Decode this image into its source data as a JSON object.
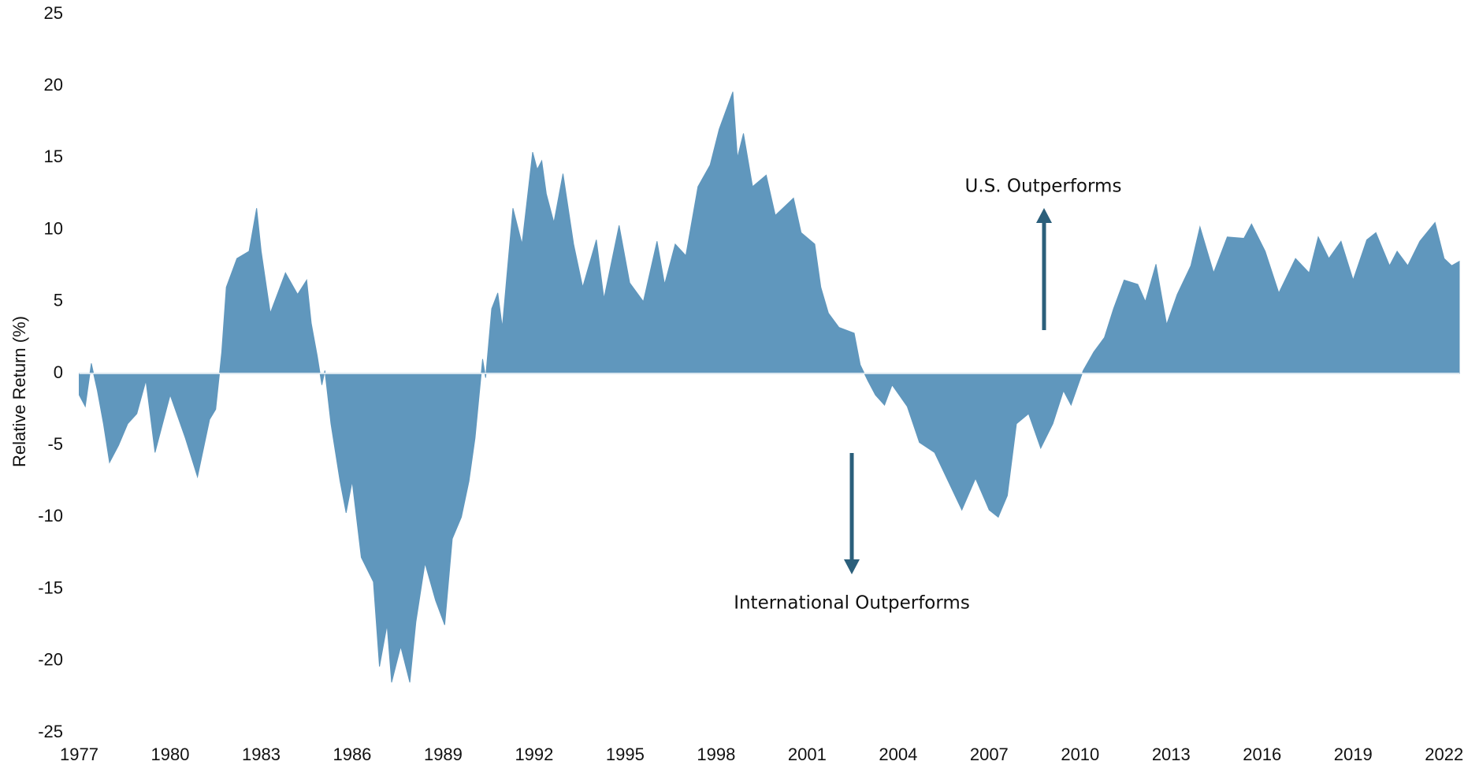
{
  "chart_data": {
    "type": "area",
    "y_label": "Relative Return (%)",
    "annotations": [
      "U.S. Outperforms",
      "International Outperforms"
    ],
    "color": "#6097bd",
    "x": [
      1977.0,
      1977.2,
      1977.4,
      1977.6,
      1977.8,
      1978.0,
      1978.3,
      1978.6,
      1978.9,
      1979.2,
      1979.5,
      1980.0,
      1980.5,
      1980.9,
      1981.3,
      1981.5,
      1981.7,
      1981.85,
      1982.2,
      1982.6,
      1982.85,
      1983.0,
      1983.3,
      1983.8,
      1984.2,
      1984.5,
      1984.65,
      1984.85,
      1985.0,
      1985.1,
      1985.3,
      1985.6,
      1985.8,
      1986.0,
      1986.3,
      1986.7,
      1986.9,
      1987.15,
      1987.3,
      1987.6,
      1987.9,
      1988.1,
      1988.4,
      1988.75,
      1989.05,
      1989.3,
      1989.6,
      1989.85,
      1990.05,
      1990.3,
      1990.4,
      1990.6,
      1990.8,
      1990.95,
      1991.1,
      1991.3,
      1991.6,
      1991.95,
      1992.1,
      1992.25,
      1992.4,
      1992.65,
      1992.95,
      1993.3,
      1993.6,
      1994.05,
      1994.3,
      1994.8,
      1995.15,
      1995.6,
      1996.05,
      1996.3,
      1996.65,
      1997.0,
      1997.4,
      1997.8,
      1998.1,
      1998.55,
      1998.7,
      1998.9,
      1999.2,
      1999.65,
      1999.95,
      2000.55,
      2000.8,
      2001.25,
      2001.45,
      2001.7,
      2002.05,
      2002.55,
      2002.75,
      2003.0,
      2003.25,
      2003.55,
      2003.8,
      2004.3,
      2004.7,
      2005.2,
      2005.65,
      2006.1,
      2006.55,
      2007.0,
      2007.3,
      2007.6,
      2007.9,
      2008.3,
      2008.7,
      2009.1,
      2009.45,
      2009.7,
      2010.1,
      2010.45,
      2010.8,
      2011.1,
      2011.45,
      2011.9,
      2012.15,
      2012.5,
      2012.85,
      2013.2,
      2013.65,
      2013.95,
      2014.4,
      2014.85,
      2015.4,
      2015.65,
      2016.1,
      2016.55,
      2017.1,
      2017.55,
      2017.85,
      2018.2,
      2018.6,
      2019.0,
      2019.45,
      2019.75,
      2020.2,
      2020.45,
      2020.8,
      2021.2,
      2021.7,
      2022.0,
      2022.25,
      2022.5
    ],
    "values": [
      -1.5,
      -2.3,
      0.7,
      -1.2,
      -3.5,
      -6.2,
      -5.0,
      -3.5,
      -2.8,
      -0.5,
      -5.5,
      -1.5,
      -4.5,
      -7.2,
      -3.2,
      -2.5,
      1.5,
      6.0,
      8.0,
      8.5,
      11.5,
      8.5,
      4.2,
      7.0,
      5.5,
      6.5,
      3.5,
      1.2,
      -0.8,
      0.2,
      -3.5,
      -7.5,
      -9.7,
      -7.5,
      -12.8,
      -14.5,
      -20.4,
      -17.5,
      -21.5,
      -19.0,
      -21.5,
      -17.3,
      -13.2,
      -15.8,
      -17.5,
      -11.5,
      -10.0,
      -7.5,
      -4.5,
      1.0,
      -0.3,
      4.5,
      5.6,
      3.2,
      6.8,
      11.5,
      9.0,
      15.4,
      14.2,
      14.8,
      12.5,
      10.5,
      13.9,
      9.0,
      6.0,
      9.3,
      5.2,
      10.3,
      6.3,
      5.0,
      9.2,
      6.2,
      9.0,
      8.2,
      13.0,
      14.5,
      17.0,
      19.6,
      15.0,
      16.7,
      13.0,
      13.8,
      11.0,
      12.2,
      9.8,
      9.0,
      6.0,
      4.2,
      3.2,
      2.8,
      0.6,
      -0.5,
      -1.5,
      -2.2,
      -0.8,
      -2.3,
      -4.8,
      -5.5,
      -7.5,
      -9.5,
      -7.3,
      -9.5,
      -10.0,
      -8.5,
      -3.5,
      -2.8,
      -5.2,
      -3.5,
      -1.2,
      -2.2,
      0.2,
      1.5,
      2.5,
      4.5,
      6.5,
      6.2,
      5.0,
      7.6,
      3.4,
      5.5,
      7.5,
      10.2,
      7.0,
      9.5,
      9.4,
      10.4,
      8.5,
      5.6,
      8.0,
      7.0,
      9.5,
      8.0,
      9.2,
      6.5,
      9.3,
      9.8,
      7.5,
      8.5,
      7.5,
      9.2,
      10.5,
      8.0,
      7.5,
      7.8
    ],
    "xlim": [
      1977,
      2022.5
    ],
    "ylim": [
      -25,
      25
    ],
    "xticks": [
      1977,
      1980,
      1983,
      1986,
      1989,
      1992,
      1995,
      1998,
      2001,
      2004,
      2007,
      2010,
      2013,
      2016,
      2019,
      2022
    ],
    "yticks": [
      -25,
      -20,
      -15,
      -10,
      -5,
      0,
      5,
      10,
      15,
      20,
      25
    ],
    "grid": false,
    "zero_line": true
  }
}
